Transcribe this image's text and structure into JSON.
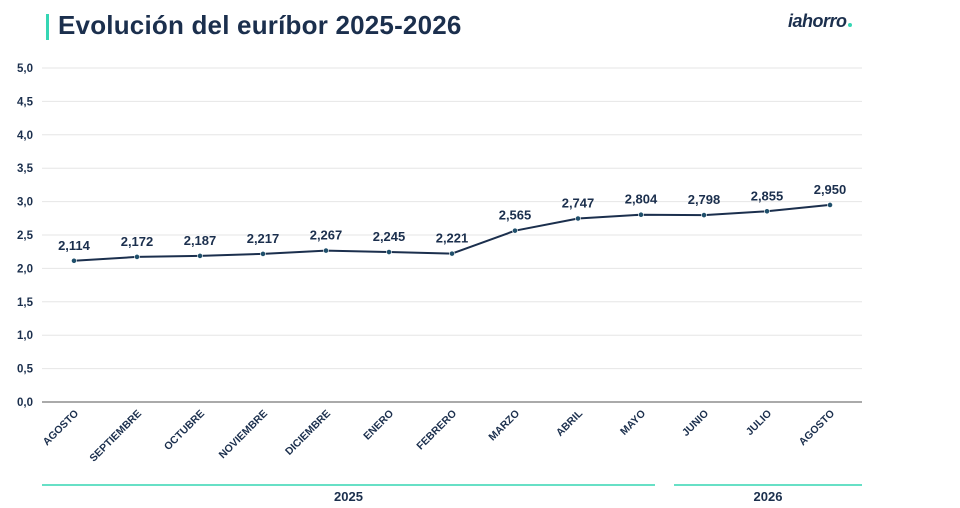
{
  "header": {
    "title": "Evolución del euríbor 2025-2026",
    "logo": "iahorro"
  },
  "chart_data": {
    "type": "line",
    "title": "Evolución del euríbor 2025-2026",
    "categories": [
      "AGOSTO",
      "SEPTIEMBRE",
      "OCTUBRE",
      "NOVIEMBRE",
      "DICIEMBRE",
      "ENERO",
      "FEBRERO",
      "MARZO",
      "ABRIL",
      "MAYO",
      "JUNIO",
      "JULIO",
      "AGOSTO"
    ],
    "values": [
      2.114,
      2.172,
      2.187,
      2.217,
      2.267,
      2.245,
      2.221,
      2.565,
      2.747,
      2.804,
      2.798,
      2.855,
      2.95
    ],
    "value_labels": [
      "2,114",
      "2,172",
      "2,187",
      "2,217",
      "2,267",
      "2,245",
      "2,221",
      "2,565",
      "2,747",
      "2,804",
      "2,798",
      "2,855",
      "2,950"
    ],
    "y_ticks": [
      "0,0",
      "0,5",
      "1,0",
      "1,5",
      "2,0",
      "2,5",
      "3,0",
      "3,5",
      "4,0",
      "4,5",
      "5,0"
    ],
    "ylim": [
      0,
      5
    ],
    "grid": true,
    "year_groups": [
      {
        "label": "2025",
        "from": 0,
        "to": 9
      },
      {
        "label": "2026",
        "from": 10,
        "to": 12
      }
    ],
    "colors": {
      "line": "#1b2f4d",
      "accent": "#35d6b4",
      "grid": "#e6e6e6",
      "axis": "#555555"
    }
  }
}
